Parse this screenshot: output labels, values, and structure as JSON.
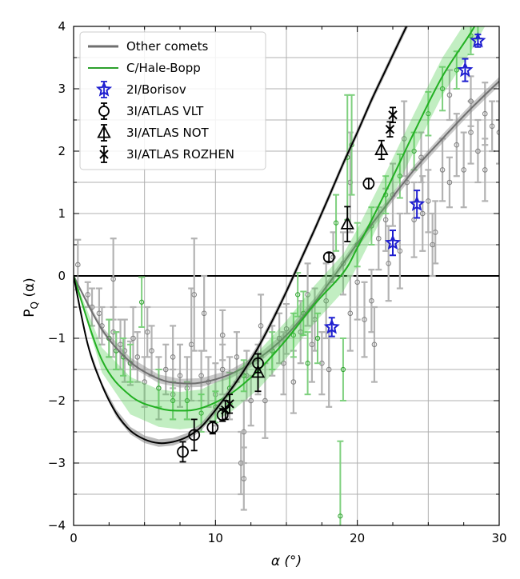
{
  "chart_data": {
    "type": "scatter",
    "xlabel": "α (°)",
    "ylabel_main": "P",
    "ylabel_sub": "Q",
    "ylabel_tail": " (α)",
    "xlim": [
      0,
      30
    ],
    "ylim": [
      -4,
      4
    ],
    "xticks": [
      0,
      10,
      20,
      30
    ],
    "yticks": [
      -4,
      -3,
      -2,
      -1,
      0,
      1,
      2,
      3,
      4
    ],
    "grid": true,
    "legend_position": "top-left",
    "colors": {
      "other": "#7f7f7f",
      "other_light": "#b3b3b3",
      "halebopp": "#2ca02c",
      "halebopp_light": "#7fd07f",
      "borisov": "#1f1fd0",
      "atlas": "#000000"
    },
    "legend": [
      {
        "label": "Other comets",
        "marker": "line-gray"
      },
      {
        "label": "C/Hale-Bopp",
        "marker": "line-green"
      },
      {
        "label": "2I/Borisov",
        "marker": "star"
      },
      {
        "label": "3I/ATLAS VLT",
        "marker": "circle"
      },
      {
        "label": "3I/ATLAS NOT",
        "marker": "triangle"
      },
      {
        "label": "3I/ATLAS ROZHEN",
        "marker": "x"
      }
    ],
    "curves": [
      {
        "name": "Other comets",
        "points": [
          [
            0,
            0
          ],
          [
            2,
            -0.86
          ],
          [
            4,
            -1.38
          ],
          [
            6,
            -1.65
          ],
          [
            7.5,
            -1.72
          ],
          [
            9,
            -1.71
          ],
          [
            11,
            -1.58
          ],
          [
            13,
            -1.33
          ],
          [
            15,
            -0.95
          ],
          [
            17,
            -0.42
          ],
          [
            19,
            0.2
          ],
          [
            20,
            0.52
          ],
          [
            22,
            1.12
          ],
          [
            24,
            1.7
          ],
          [
            26,
            2.2
          ],
          [
            28,
            2.68
          ],
          [
            30,
            3.12
          ]
        ],
        "band": 0.07
      },
      {
        "name": "C/Hale-Bopp",
        "points": [
          [
            0,
            0
          ],
          [
            2,
            -1.35
          ],
          [
            4,
            -1.92
          ],
          [
            6,
            -2.12
          ],
          [
            7.5,
            -2.16
          ],
          [
            9,
            -2.12
          ],
          [
            11,
            -1.9
          ],
          [
            13,
            -1.52
          ],
          [
            15,
            -1.02
          ],
          [
            17,
            -0.45
          ],
          [
            19,
            0.05
          ],
          [
            20,
            0.45
          ],
          [
            22,
            1.35
          ],
          [
            24,
            2.3
          ],
          [
            26,
            3.2
          ],
          [
            28,
            3.9
          ],
          [
            29,
            4.3
          ]
        ],
        "band": 0.3
      },
      {
        "name": "3I/ATLAS fit",
        "points": [
          [
            0,
            0
          ],
          [
            1,
            -1.1
          ],
          [
            2,
            -1.75
          ],
          [
            3,
            -2.2
          ],
          [
            4,
            -2.48
          ],
          [
            5,
            -2.62
          ],
          [
            6,
            -2.68
          ],
          [
            7,
            -2.66
          ],
          [
            8,
            -2.58
          ],
          [
            9,
            -2.42
          ],
          [
            10,
            -2.15
          ],
          [
            11,
            -1.85
          ],
          [
            12,
            -1.52
          ],
          [
            13,
            -1.15
          ],
          [
            14,
            -0.72
          ],
          [
            15,
            -0.25
          ],
          [
            16,
            0.25
          ],
          [
            17,
            0.75
          ],
          [
            18,
            1.27
          ],
          [
            19,
            1.8
          ],
          [
            20,
            2.3
          ],
          [
            21,
            2.82
          ],
          [
            22,
            3.3
          ],
          [
            23,
            3.78
          ],
          [
            24,
            4.25
          ]
        ],
        "band": 0.06
      }
    ],
    "hale_bopp_points": [
      [
        4.8,
        -0.42,
        0.4
      ],
      [
        18.5,
        0.85,
        0.45
      ],
      [
        19,
        -1.5,
        0.5
      ],
      [
        19.3,
        1.9,
        1.0
      ],
      [
        19.6,
        2.1,
        0.8
      ],
      [
        16.5,
        -1.4,
        0.5
      ],
      [
        15.5,
        -0.95,
        0.35
      ],
      [
        17.2,
        -1.0,
        0.4
      ],
      [
        18.8,
        -3.85,
        1.2
      ],
      [
        2.5,
        -1.0,
        0.3
      ],
      [
        3,
        -1.2,
        0.3
      ],
      [
        3.5,
        -1.3,
        0.3
      ],
      [
        4,
        -1.4,
        0.3
      ],
      [
        6,
        -1.8,
        0.3
      ],
      [
        7,
        -2.0,
        0.3
      ],
      [
        8,
        -2.0,
        0.3
      ],
      [
        9,
        -2.2,
        0.3
      ],
      [
        10,
        -2.1,
        0.25
      ],
      [
        11,
        -1.8,
        0.25
      ],
      [
        12,
        -1.6,
        0.25
      ],
      [
        14,
        -1.2,
        0.3
      ],
      [
        20,
        0.5,
        0.35
      ],
      [
        21,
        0.8,
        0.3
      ],
      [
        22,
        1.3,
        0.3
      ],
      [
        23,
        1.6,
        0.35
      ],
      [
        24,
        2.0,
        0.3
      ],
      [
        25,
        2.6,
        0.35
      ],
      [
        26,
        3.0,
        0.35
      ],
      [
        27,
        3.3,
        0.3
      ],
      [
        28,
        3.85,
        0.3
      ],
      [
        28.5,
        4.1,
        0.3
      ],
      [
        15.8,
        -0.3,
        0.35
      ],
      [
        16.2,
        -0.6,
        0.35
      ]
    ],
    "other_points": [
      [
        0.3,
        0.18,
        0.4
      ],
      [
        1,
        -0.3,
        0.2
      ],
      [
        1.3,
        -0.5,
        0.3
      ],
      [
        1.8,
        -0.6,
        0.4
      ],
      [
        2,
        -0.8,
        0.3
      ],
      [
        2.5,
        -1.0,
        0.3
      ],
      [
        2.8,
        -0.9,
        0.4
      ],
      [
        3,
        -1.2,
        0.3
      ],
      [
        2.8,
        -0.05,
        0.65
      ],
      [
        3.3,
        -1.1,
        0.4
      ],
      [
        3.6,
        -1.2,
        0.5
      ],
      [
        4,
        -1.4,
        0.35
      ],
      [
        4.5,
        -1.3,
        0.4
      ],
      [
        5,
        -1.7,
        0.4
      ],
      [
        5.5,
        -1.2,
        0.4
      ],
      [
        6,
        -1.8,
        0.5
      ],
      [
        6.5,
        -1.5,
        0.4
      ],
      [
        7,
        -1.9,
        0.4
      ],
      [
        7.5,
        -1.6,
        0.5
      ],
      [
        8,
        -1.8,
        0.5
      ],
      [
        8.3,
        -1.1,
        0.9
      ],
      [
        8.5,
        -0.3,
        0.9
      ],
      [
        9,
        -1.6,
        0.4
      ],
      [
        9.5,
        -1.7,
        0.4
      ],
      [
        10,
        -1.9,
        0.5
      ],
      [
        10.5,
        -1.5,
        0.4
      ],
      [
        11,
        -1.8,
        0.5
      ],
      [
        11.5,
        -1.3,
        0.4
      ],
      [
        12,
        -2.5,
        0.5
      ],
      [
        12.2,
        -1.6,
        0.4
      ],
      [
        11.8,
        -3.0,
        0.5
      ],
      [
        12,
        -3.25,
        0.5
      ],
      [
        12.5,
        -2.0,
        0.4
      ],
      [
        13,
        -1.5,
        0.4
      ],
      [
        13.5,
        -2.0,
        0.6
      ],
      [
        14,
        -1.2,
        0.4
      ],
      [
        14.5,
        -1.0,
        0.4
      ],
      [
        15,
        -0.85,
        0.4
      ],
      [
        15.5,
        -1.7,
        0.5
      ],
      [
        16,
        -0.9,
        0.5
      ],
      [
        16.5,
        -0.3,
        0.5
      ],
      [
        17,
        -0.7,
        0.5
      ],
      [
        17.5,
        -1.4,
        0.5
      ],
      [
        17.8,
        -0.4,
        0.6
      ],
      [
        18.3,
        0.3,
        0.4
      ],
      [
        19,
        0.2,
        0.5
      ],
      [
        19.5,
        1.5,
        0.8
      ],
      [
        20,
        -0.1,
        0.6
      ],
      [
        20.5,
        -0.7,
        0.6
      ],
      [
        21,
        -0.4,
        0.5
      ],
      [
        21.5,
        0.6,
        0.5
      ],
      [
        22,
        0.9,
        0.5
      ],
      [
        22.5,
        1.3,
        0.5
      ],
      [
        23,
        0.4,
        0.6
      ],
      [
        23.5,
        1.5,
        0.5
      ],
      [
        24,
        0.9,
        0.6
      ],
      [
        24.5,
        1.9,
        0.4
      ],
      [
        25,
        1.2,
        0.5
      ],
      [
        25.5,
        0.7,
        0.5
      ],
      [
        26,
        1.7,
        0.5
      ],
      [
        26.5,
        1.5,
        0.4
      ],
      [
        27,
        2.1,
        0.5
      ],
      [
        27.5,
        1.7,
        0.6
      ],
      [
        28,
        2.3,
        0.5
      ],
      [
        28.5,
        2.0,
        0.5
      ],
      [
        29,
        2.6,
        0.5
      ],
      [
        29.5,
        2.4,
        0.4
      ],
      [
        30,
        2.3,
        0.5
      ],
      [
        26.5,
        2.9,
        0.4
      ],
      [
        28,
        2.8,
        0.4
      ],
      [
        29,
        1.7,
        0.5
      ],
      [
        23.3,
        2.2,
        0.6
      ],
      [
        24.6,
        1.0,
        0.6
      ],
      [
        25.3,
        0.5,
        0.5
      ],
      [
        18,
        -1.5,
        0.6
      ],
      [
        19.5,
        -0.6,
        0.6
      ],
      [
        10.5,
        -0.95,
        0.4
      ],
      [
        9.2,
        -0.6,
        0.6
      ],
      [
        7,
        -1.3,
        0.5
      ],
      [
        5.2,
        -0.9,
        0.4
      ],
      [
        4.2,
        -1.0,
        0.5
      ],
      [
        13.2,
        -0.8,
        0.5
      ],
      [
        14.8,
        -1.4,
        0.5
      ],
      [
        16.8,
        -1.1,
        0.6
      ],
      [
        21.2,
        -1.1,
        0.6
      ],
      [
        22.2,
        0.2,
        0.6
      ]
    ],
    "borisov": [
      [
        18.2,
        -0.82,
        0.15
      ],
      [
        22.5,
        0.53,
        0.2
      ],
      [
        24.2,
        1.15,
        0.22
      ],
      [
        27.6,
        3.3,
        0.18
      ],
      [
        28.5,
        3.77,
        0.1
      ]
    ],
    "atlas_vlt": [
      [
        7.7,
        -2.82,
        0.16
      ],
      [
        8.5,
        -2.55,
        0.25
      ],
      [
        9.8,
        -2.43,
        0.1
      ],
      [
        10.5,
        -2.23,
        0.1
      ],
      [
        13,
        -1.4,
        0.15
      ],
      [
        18,
        0.3,
        0.07
      ],
      [
        20.8,
        1.48,
        0.08
      ]
    ],
    "atlas_not": [
      [
        13,
        -1.55,
        0.3
      ],
      [
        19.3,
        0.83,
        0.28
      ],
      [
        21.7,
        2.02,
        0.15
      ]
    ],
    "atlas_rozhen": [
      [
        10.7,
        -2.15,
        0.15
      ],
      [
        11,
        -2.05,
        0.15
      ],
      [
        22.3,
        2.35,
        0.12
      ],
      [
        22.5,
        2.58,
        0.12
      ]
    ]
  }
}
